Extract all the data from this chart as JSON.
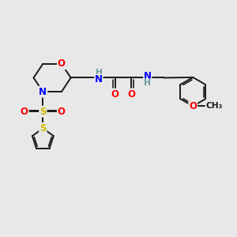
{
  "bg_color": "#e8e8e8",
  "bond_color": "#1a1a1a",
  "bond_width": 1.4,
  "atom_colors": {
    "O": "#ff0000",
    "N": "#0000ff",
    "S_sulfonyl": "#ccbb00",
    "S_thio": "#ccbb00",
    "H": "#6a9a9a",
    "C": "#1a1a1a"
  },
  "font_size": 8.5,
  "fig_width": 3.0,
  "fig_height": 3.0,
  "xlim": [
    0,
    10
  ],
  "ylim": [
    0,
    10
  ]
}
